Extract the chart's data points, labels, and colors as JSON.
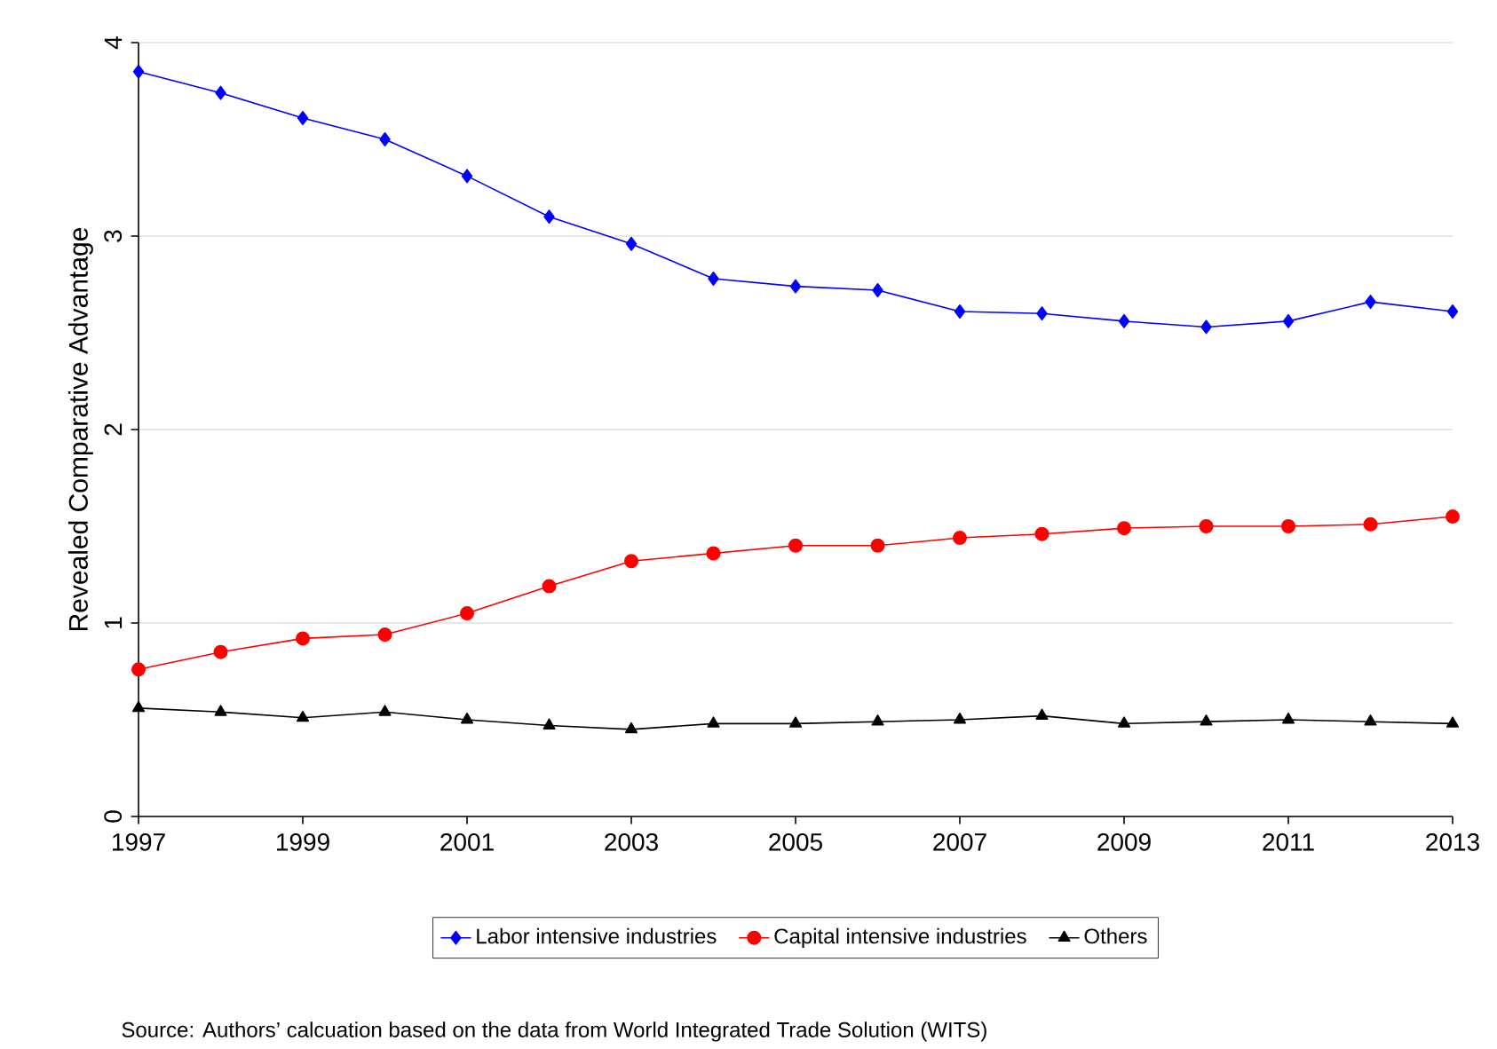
{
  "chart_data": {
    "type": "line",
    "ylabel": "Revealed Comparative Advantage",
    "x": [
      1997,
      1998,
      1999,
      2000,
      2001,
      2002,
      2003,
      2004,
      2005,
      2006,
      2007,
      2008,
      2009,
      2010,
      2011,
      2012,
      2013
    ],
    "series": [
      {
        "name": "Labor intensive industries",
        "color": "#0000ff",
        "marker": "diamond",
        "values": [
          3.85,
          3.74,
          3.61,
          3.5,
          3.31,
          3.1,
          2.96,
          2.78,
          2.74,
          2.72,
          2.61,
          2.6,
          2.56,
          2.53,
          2.56,
          2.66,
          2.61
        ]
      },
      {
        "name": "Capital intensive industries",
        "color": "#ff0000",
        "marker": "circle",
        "values": [
          0.76,
          0.85,
          0.92,
          0.94,
          1.05,
          1.19,
          1.32,
          1.36,
          1.4,
          1.4,
          1.44,
          1.46,
          1.49,
          1.5,
          1.5,
          1.51,
          1.55
        ]
      },
      {
        "name": "Others",
        "color": "#000000",
        "marker": "triangle",
        "values": [
          0.56,
          0.54,
          0.51,
          0.54,
          0.5,
          0.47,
          0.45,
          0.48,
          0.48,
          0.49,
          0.5,
          0.52,
          0.48,
          0.49,
          0.5,
          0.49,
          0.48
        ]
      }
    ],
    "xlim": [
      1997,
      2013
    ],
    "xticks": [
      1997,
      1999,
      2001,
      2003,
      2005,
      2007,
      2009,
      2011,
      2013
    ],
    "ylim": [
      0,
      4
    ],
    "yticks": [
      0,
      1,
      2,
      3,
      4
    ],
    "grid": "y",
    "legend": "bottom",
    "line_style": "solid",
    "annotations": [
      "Source: Authors’ calcuation based on the data from World Integrated Trade Solution (WITS)"
    ]
  }
}
